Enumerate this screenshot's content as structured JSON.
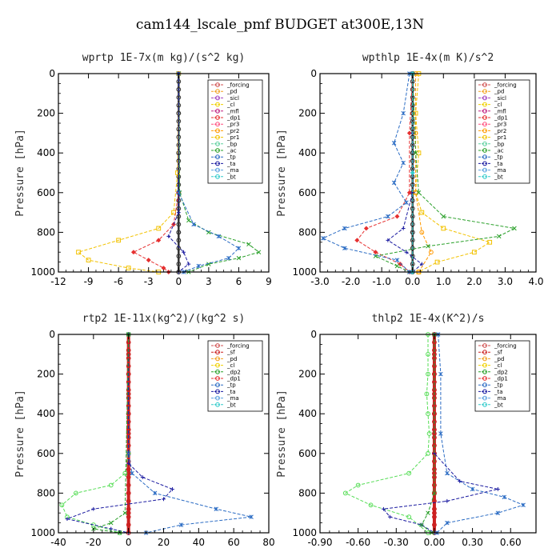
{
  "figure_title": "cam144_lscale_pmf  BUDGET at300E,13N",
  "y_axis_label": "Pressure [hPa]",
  "chart_data": [
    {
      "type": "line",
      "title": "wprtp  1E-7x(m kg)/(s^2 kg)",
      "ylabel": "Pressure [hPa]",
      "xlim": [
        -12,
        9
      ],
      "ylim": [
        1000,
        0
      ],
      "xticks": [
        "-12",
        "-9",
        "-6",
        "-3",
        "0",
        "3",
        "6",
        "9"
      ],
      "xtick_values": [
        -12,
        -9,
        -6,
        -3,
        0,
        3,
        6,
        9
      ],
      "yticks": [
        "0",
        "200",
        "400",
        "600",
        "800",
        "1000"
      ],
      "ytick_values": [
        0,
        200,
        400,
        600,
        800,
        1000
      ],
      "legend": [
        "_forcing",
        "_pd",
        "_sicl",
        "_cl",
        "_mfl",
        "_dp1",
        "_pr3",
        "_pr2",
        "_pr1",
        "_bp",
        "_ac",
        "_tp",
        "_ta",
        "_ma",
        "_bt"
      ],
      "series": [
        {
          "name": "_forcing",
          "color": "#333333",
          "marker": "circle",
          "pressure": [
            0,
            200,
            400,
            600,
            800,
            1000
          ],
          "values": [
            0,
            0,
            0,
            0,
            0,
            0
          ]
        },
        {
          "name": "_pr1",
          "color": "#f2c200",
          "marker": "square",
          "pressure": [
            0,
            500,
            700,
            780,
            840,
            900,
            940,
            980,
            1000
          ],
          "values": [
            0,
            -0.1,
            -0.5,
            -2,
            -6,
            -10,
            -9,
            -5,
            -2
          ]
        },
        {
          "name": "_dp1",
          "color": "#e63030",
          "marker": "diamond",
          "pressure": [
            0,
            600,
            760,
            840,
            900,
            940,
            980,
            1000
          ],
          "values": [
            0,
            0,
            -0.5,
            -2,
            -4.5,
            -3,
            -1.5,
            -1
          ]
        },
        {
          "name": "_ac",
          "color": "#2aa02a",
          "marker": "cross",
          "pressure": [
            0,
            600,
            740,
            800,
            860,
            900,
            930,
            960,
            1000
          ],
          "values": [
            0,
            0.1,
            1,
            3,
            7,
            8,
            6,
            3,
            1
          ]
        },
        {
          "name": "_tp",
          "color": "#2b6cc4",
          "marker": "star",
          "pressure": [
            0,
            600,
            760,
            820,
            880,
            930,
            970,
            1000
          ],
          "values": [
            0,
            0,
            1.5,
            4,
            6,
            5,
            2,
            0.5
          ]
        },
        {
          "name": "_ta",
          "color": "#1a1aa0",
          "marker": "plus",
          "pressure": [
            0,
            700,
            820,
            900,
            960,
            1000
          ],
          "values": [
            0,
            0,
            -1,
            0.5,
            1,
            0
          ]
        }
      ]
    },
    {
      "type": "line",
      "title": "wpthlp  1E-4x(m K)/s^2",
      "ylabel": "Pressure [hPa]",
      "xlim": [
        -3,
        4
      ],
      "ylim": [
        1000,
        0
      ],
      "xticks": [
        "-3.0",
        "-2.0",
        "-1.0",
        "0.0",
        "1.0",
        "2.0",
        "3.0",
        "4.0"
      ],
      "xtick_values": [
        -3,
        -2,
        -1,
        0,
        1,
        2,
        3,
        4
      ],
      "yticks": [
        "0",
        "200",
        "400",
        "600",
        "800",
        "1000"
      ],
      "ytick_values": [
        0,
        200,
        400,
        600,
        800,
        1000
      ],
      "legend": [
        "_forcing",
        "_pd",
        "_sicl",
        "_cl",
        "_mfl",
        "_dp1",
        "_pr3",
        "_pr2",
        "_pr1",
        "_bp",
        "_ac",
        "_tp",
        "_ta",
        "_ma",
        "_bt"
      ],
      "series": [
        {
          "name": "_forcing",
          "color": "#333333",
          "marker": "circle",
          "pressure": [
            0,
            200,
            400,
            600,
            800,
            1000
          ],
          "values": [
            0,
            0,
            0,
            0,
            0,
            0
          ]
        },
        {
          "name": "_pr1",
          "color": "#f2c200",
          "marker": "square",
          "pressure": [
            0,
            200,
            400,
            600,
            700,
            780,
            850,
            900,
            950,
            1000
          ],
          "values": [
            0.2,
            0.1,
            0.2,
            0.1,
            0.3,
            1,
            2.5,
            2,
            0.8,
            0.2
          ]
        },
        {
          "name": "_pr2",
          "color": "#ff9900",
          "marker": "circle",
          "pressure": [
            0,
            300,
            600,
            800,
            900,
            1000
          ],
          "values": [
            0.1,
            0.1,
            0.1,
            0.3,
            0.6,
            0.2
          ]
        },
        {
          "name": "_dp1",
          "color": "#e63030",
          "marker": "diamond",
          "pressure": [
            0,
            300,
            600,
            720,
            780,
            840,
            900,
            960,
            1000
          ],
          "values": [
            0,
            -0.1,
            -0.1,
            -0.5,
            -1.5,
            -1.8,
            -1.2,
            -0.4,
            -0.1
          ]
        },
        {
          "name": "_ac",
          "color": "#2aa02a",
          "marker": "cross",
          "pressure": [
            0,
            400,
            600,
            720,
            780,
            820,
            870,
            920,
            970,
            1000
          ],
          "values": [
            0,
            0.1,
            0.2,
            1,
            3.3,
            2.8,
            0.5,
            -1.2,
            -0.5,
            -0.1
          ]
        },
        {
          "name": "_tp",
          "color": "#2b6cc4",
          "marker": "star",
          "pressure": [
            0,
            200,
            350,
            450,
            550,
            650,
            720,
            780,
            830,
            880,
            940,
            1000
          ],
          "values": [
            -0.1,
            -0.3,
            -0.6,
            -0.3,
            -0.6,
            -0.2,
            -0.8,
            -2.2,
            -2.9,
            -2.2,
            -0.5,
            -0.1
          ]
        },
        {
          "name": "_ta",
          "color": "#1a1aa0",
          "marker": "plus",
          "pressure": [
            0,
            300,
            600,
            780,
            840,
            900,
            960,
            1000
          ],
          "values": [
            0,
            0,
            0,
            -0.3,
            -0.8,
            -0.2,
            0.3,
            0
          ]
        },
        {
          "name": "_bt",
          "color": "#33cccc",
          "marker": "diamond",
          "pressure": [
            0,
            500,
            1000
          ],
          "values": [
            0,
            0,
            0
          ]
        }
      ]
    },
    {
      "type": "line",
      "title": "rtp2  1E-11x(kg^2)/(kg^2 s)",
      "ylabel": "Pressure [hPa]",
      "xlim": [
        -40,
        80
      ],
      "ylim": [
        1000,
        0
      ],
      "xticks": [
        "-40",
        "-20",
        "0",
        "20",
        "40",
        "60",
        "80"
      ],
      "xtick_values": [
        -40,
        -20,
        0,
        20,
        40,
        60,
        80
      ],
      "yticks": [
        "0",
        "200",
        "400",
        "600",
        "800",
        "1000"
      ],
      "ytick_values": [
        0,
        200,
        400,
        600,
        800,
        1000
      ],
      "legend": [
        "_forcing",
        "_sf",
        "_pd",
        "_cl",
        "_dp2",
        "_dp1",
        "_tp",
        "_ta",
        "_ma",
        "_bt"
      ],
      "series": [
        {
          "name": "_forcing",
          "color": "#cc2020",
          "marker": "circle",
          "pressure": [
            0,
            100,
            200,
            300,
            400,
            500,
            600,
            700,
            800,
            900,
            1000
          ],
          "values": [
            0,
            0,
            0,
            0,
            0,
            0,
            0,
            0,
            0,
            0,
            0
          ]
        },
        {
          "name": "_dp1",
          "color": "#55dd55",
          "marker": "circle",
          "pressure": [
            0,
            600,
            700,
            760,
            800,
            860,
            920,
            960,
            1000
          ],
          "values": [
            0,
            0,
            -2,
            -10,
            -30,
            -38,
            -35,
            -20,
            -5
          ]
        },
        {
          "name": "_tp",
          "color": "#2b6cc4",
          "marker": "star",
          "pressure": [
            0,
            600,
            700,
            800,
            880,
            920,
            960,
            1000
          ],
          "values": [
            0,
            0,
            2,
            15,
            50,
            70,
            30,
            10
          ]
        },
        {
          "name": "_ta",
          "color": "#1a1aa0",
          "marker": "plus",
          "pressure": [
            0,
            650,
            720,
            780,
            830,
            880,
            930,
            980,
            1000
          ],
          "values": [
            0,
            0,
            8,
            25,
            20,
            -20,
            -35,
            -10,
            0
          ]
        },
        {
          "name": "_dp2",
          "color": "#2aa02a",
          "marker": "cross",
          "pressure": [
            0,
            900,
            950,
            980,
            1000
          ],
          "values": [
            0,
            -2,
            -10,
            -20,
            -5
          ]
        }
      ]
    },
    {
      "type": "line",
      "title": "thlp2  1E-4x(K^2)/s",
      "ylabel": "Pressure [hPa]",
      "xlim": [
        -0.9,
        0.8
      ],
      "ylim": [
        1000,
        0
      ],
      "xticks": [
        "-0.90",
        "-0.60",
        "-0.30",
        "0.00",
        "0.30",
        "0.60"
      ],
      "xtick_values": [
        -0.9,
        -0.6,
        -0.3,
        0,
        0.3,
        0.6
      ],
      "yticks": [
        "0",
        "200",
        "400",
        "600",
        "800",
        "1000"
      ],
      "ytick_values": [
        0,
        200,
        400,
        600,
        800,
        1000
      ],
      "legend": [
        "_forcing",
        "_sf",
        "_pd",
        "_cl",
        "_dp2",
        "_dp1",
        "_tp",
        "_ta",
        "_ma",
        "_bt"
      ],
      "series": [
        {
          "name": "_forcing",
          "color": "#cc2020",
          "marker": "circle",
          "pressure": [
            0,
            100,
            200,
            300,
            400,
            500,
            600,
            700,
            800,
            900,
            1000
          ],
          "values": [
            0,
            0,
            0,
            0,
            0,
            0,
            0,
            0,
            0,
            0,
            0
          ]
        },
        {
          "name": "_dp1",
          "color": "#55dd55",
          "marker": "circle",
          "pressure": [
            0,
            100,
            200,
            300,
            400,
            500,
            600,
            700,
            760,
            800,
            860,
            920,
            1000
          ],
          "values": [
            -0.05,
            -0.05,
            -0.05,
            -0.06,
            -0.05,
            -0.04,
            -0.05,
            -0.2,
            -0.6,
            -0.7,
            -0.5,
            -0.2,
            -0.05
          ]
        },
        {
          "name": "_tp",
          "color": "#2b6cc4",
          "marker": "star",
          "pressure": [
            0,
            200,
            500,
            700,
            780,
            820,
            860,
            900,
            950,
            1000
          ],
          "values": [
            0.03,
            0.05,
            0.05,
            0.1,
            0.3,
            0.55,
            0.7,
            0.5,
            0.1,
            0.02
          ]
        },
        {
          "name": "_ta",
          "color": "#1a1aa0",
          "marker": "plus",
          "pressure": [
            0,
            600,
            740,
            780,
            840,
            880,
            920,
            960,
            1000
          ],
          "values": [
            0,
            0,
            0.2,
            0.5,
            0.1,
            -0.4,
            -0.35,
            -0.1,
            0
          ]
        },
        {
          "name": "_dp2",
          "color": "#2aa02a",
          "marker": "cross",
          "pressure": [
            0,
            800,
            900,
            960,
            1000
          ],
          "values": [
            0,
            0,
            -0.05,
            -0.1,
            -0.02
          ]
        }
      ]
    }
  ]
}
